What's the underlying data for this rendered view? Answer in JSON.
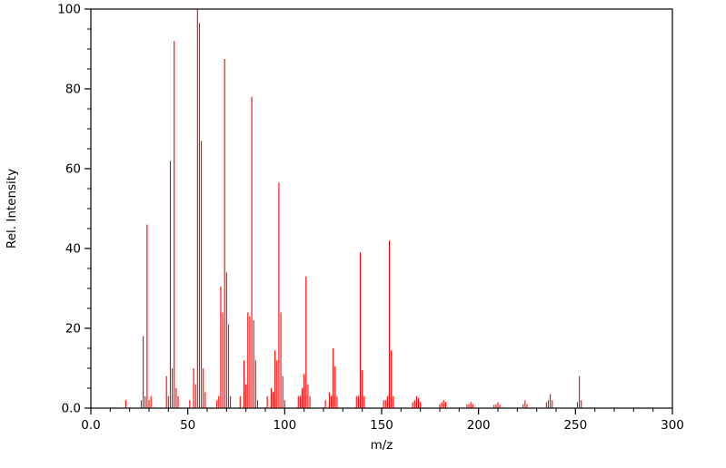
{
  "chart_data": {
    "type": "bar",
    "subtype": "mass-spectrum-stick-plot",
    "title": "",
    "xlabel": "m/z",
    "ylabel": "Rel. Intensity",
    "xlim": [
      0,
      300
    ],
    "ylim": [
      0,
      100
    ],
    "grid": false,
    "legend": "none",
    "line_color": "#ff0000",
    "axis_color": "#000000",
    "background": "#ffffff",
    "x_major_ticks": [
      0,
      50,
      100,
      150,
      200,
      250,
      300
    ],
    "x_tick_labels": [
      "0.0",
      "50",
      "100",
      "150",
      "200",
      "250",
      "300"
    ],
    "y_major_ticks": [
      0,
      20,
      40,
      60,
      80,
      100
    ],
    "y_tick_labels": [
      "0.0",
      "20",
      "40",
      "60",
      "80",
      "100"
    ],
    "x_minor_step": 10,
    "y_minor_step": 5,
    "peaks": [
      [
        18,
        2
      ],
      [
        26,
        2
      ],
      [
        27,
        18
      ],
      [
        28,
        3
      ],
      [
        29,
        46
      ],
      [
        30,
        2
      ],
      [
        31,
        3
      ],
      [
        39,
        8
      ],
      [
        40,
        3
      ],
      [
        41,
        62
      ],
      [
        42,
        10
      ],
      [
        43,
        92
      ],
      [
        44,
        5
      ],
      [
        45,
        3
      ],
      [
        51,
        2
      ],
      [
        53,
        10
      ],
      [
        54,
        6
      ],
      [
        55,
        100
      ],
      [
        56,
        96.5
      ],
      [
        57,
        67
      ],
      [
        58,
        10
      ],
      [
        59,
        4
      ],
      [
        65,
        2
      ],
      [
        66,
        3
      ],
      [
        67,
        30.5
      ],
      [
        68,
        24
      ],
      [
        69,
        87.5
      ],
      [
        70,
        34
      ],
      [
        71,
        21
      ],
      [
        72,
        3
      ],
      [
        77,
        3
      ],
      [
        79,
        12
      ],
      [
        80,
        6
      ],
      [
        81,
        24
      ],
      [
        82,
        23
      ],
      [
        83,
        78
      ],
      [
        84,
        22
      ],
      [
        85,
        12
      ],
      [
        86,
        2
      ],
      [
        91,
        3
      ],
      [
        93,
        5
      ],
      [
        94,
        4
      ],
      [
        95,
        14.5
      ],
      [
        96,
        12
      ],
      [
        97,
        56.5
      ],
      [
        98,
        24
      ],
      [
        99,
        8
      ],
      [
        100,
        2
      ],
      [
        107,
        3
      ],
      [
        108,
        3
      ],
      [
        109,
        5
      ],
      [
        110,
        8.5
      ],
      [
        111,
        33
      ],
      [
        112,
        6
      ],
      [
        113,
        3
      ],
      [
        121,
        2
      ],
      [
        123,
        4
      ],
      [
        124,
        3
      ],
      [
        125,
        15
      ],
      [
        126,
        10.5
      ],
      [
        127,
        3
      ],
      [
        137,
        3
      ],
      [
        138,
        3
      ],
      [
        139,
        39
      ],
      [
        140,
        9.5
      ],
      [
        141,
        3
      ],
      [
        151,
        2
      ],
      [
        152,
        2
      ],
      [
        153,
        3
      ],
      [
        154,
        42
      ],
      [
        155,
        14.5
      ],
      [
        156,
        3
      ],
      [
        166,
        1.5
      ],
      [
        167,
        2
      ],
      [
        168,
        3
      ],
      [
        169,
        2.5
      ],
      [
        170,
        1.5
      ],
      [
        180,
        1
      ],
      [
        181,
        1.5
      ],
      [
        182,
        2
      ],
      [
        183,
        1.5
      ],
      [
        194,
        1
      ],
      [
        195,
        1
      ],
      [
        196,
        1.5
      ],
      [
        197,
        1
      ],
      [
        208,
        0.8
      ],
      [
        209,
        1
      ],
      [
        210,
        1.5
      ],
      [
        211,
        0.8
      ],
      [
        223,
        1
      ],
      [
        224,
        2
      ],
      [
        225,
        1
      ],
      [
        235,
        1.5
      ],
      [
        236,
        2
      ],
      [
        237,
        3.5
      ],
      [
        238,
        2
      ],
      [
        251,
        1.5
      ],
      [
        252,
        8
      ],
      [
        253,
        2
      ]
    ],
    "layout": {
      "plot_left": 100,
      "plot_right": 740,
      "plot_top": 10,
      "plot_bottom": 450,
      "major_tick_len": 7,
      "minor_tick_len": 4
    }
  }
}
